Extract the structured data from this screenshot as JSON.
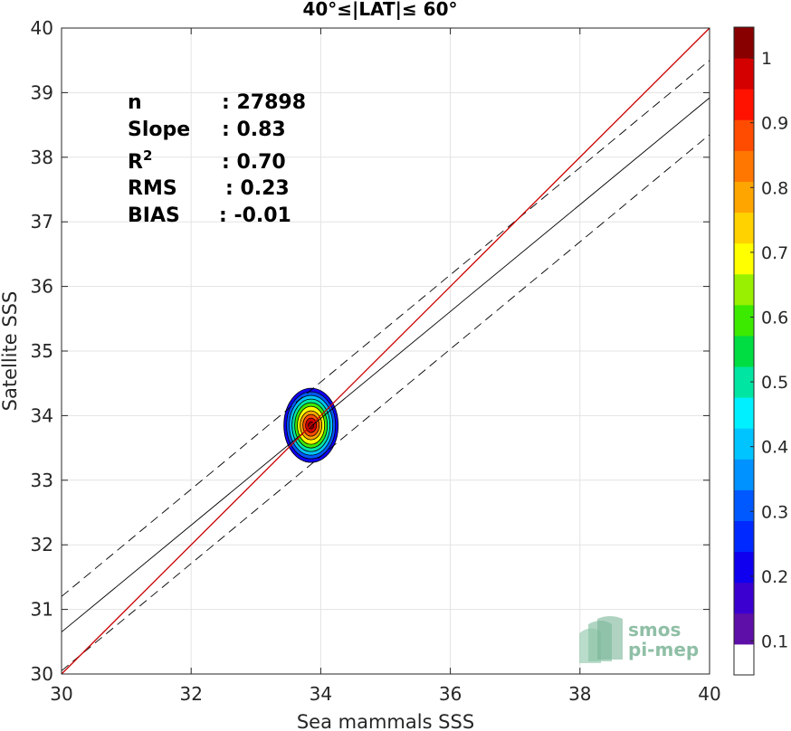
{
  "chart_data": {
    "type": "scatter",
    "title": "40°≤|LAT|≤ 60°",
    "xlabel": "Sea mammals SSS",
    "ylabel": "Satellite SSS",
    "xlim": [
      30,
      40
    ],
    "ylim": [
      30,
      40
    ],
    "xticks": [
      "30",
      "32",
      "34",
      "36",
      "38",
      "40"
    ],
    "yticks": [
      "30",
      "31",
      "32",
      "33",
      "34",
      "35",
      "36",
      "37",
      "38",
      "39",
      "40"
    ],
    "grid": true,
    "stats": [
      {
        "name": "n",
        "sep": ":",
        "value": "27898"
      },
      {
        "name": "Slope",
        "sep": ":",
        "value": "0.83"
      },
      {
        "name": "R",
        "sup": "2",
        "sep": ":",
        "value": "0.70"
      },
      {
        "name": "RMS",
        "sep": ":",
        "value": "0.23"
      },
      {
        "name": "BIAS",
        "sep": ":",
        "value": "-0.01"
      }
    ],
    "density_center": {
      "x": 33.85,
      "y": 33.85
    },
    "lines": {
      "identity": {
        "x": [
          30,
          40
        ],
        "y": [
          30,
          40
        ],
        "color": "#cc0000"
      },
      "regression": {
        "x": [
          30,
          40
        ],
        "y": [
          30.65,
          38.92
        ],
        "color": "#000000"
      },
      "regression_upper": {
        "x": [
          30,
          40
        ],
        "y": [
          31.2,
          39.5
        ],
        "color": "#000000",
        "dash": true
      },
      "regression_lower": {
        "x": [
          30,
          40
        ],
        "y": [
          30.05,
          38.35
        ],
        "color": "#000000",
        "dash": true
      }
    },
    "colorbar": {
      "ticks": [
        "0.1",
        "0.2",
        "0.3",
        "0.4",
        "0.5",
        "0.6",
        "0.7",
        "0.8",
        "0.9",
        "1"
      ],
      "range": [
        0,
        1
      ]
    }
  },
  "logo": {
    "line1": "smos",
    "line2": "pi-mep"
  }
}
